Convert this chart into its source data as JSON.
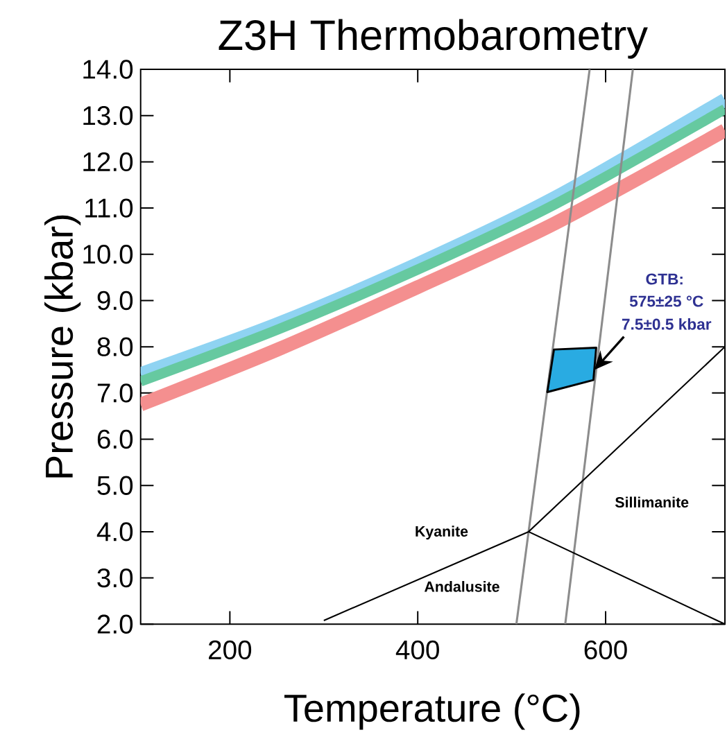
{
  "chart_data": {
    "type": "line",
    "title": "Z3H Thermobarometry",
    "xlabel": "Temperature (°C)",
    "ylabel": "Pressure (kbar)",
    "xlim": [
      105,
      727
    ],
    "ylim": [
      2,
      14
    ],
    "xticks": [
      200,
      400,
      600
    ],
    "yticks": [
      {
        "value": 2,
        "label": "2.0"
      },
      {
        "value": 3,
        "label": "3.0"
      },
      {
        "value": 4,
        "label": "4.0"
      },
      {
        "value": 5,
        "label": "5.0"
      },
      {
        "value": 6,
        "label": "6.0"
      },
      {
        "value": 7,
        "label": "7.0"
      },
      {
        "value": 8,
        "label": "8.0"
      },
      {
        "value": 9,
        "label": "9.0"
      },
      {
        "value": 10,
        "label": "10.0"
      },
      {
        "value": 11,
        "label": "11.0"
      },
      {
        "value": 12,
        "label": "12.0"
      },
      {
        "value": 13,
        "label": "13.0"
      },
      {
        "value": 14,
        "label": "14.0"
      }
    ],
    "series": [
      {
        "color": "#8fd3f2",
        "x": [
          105,
          252,
          400,
          546,
          727
        ],
        "values": [
          7.41,
          8.5,
          9.79,
          11.22,
          13.34
        ]
      },
      {
        "color": "#66c9a0",
        "x": [
          105,
          252,
          400,
          546,
          727
        ],
        "values": [
          7.25,
          8.38,
          9.67,
          11.08,
          13.14
        ]
      },
      {
        "color": "#f48f8f",
        "x": [
          105,
          252,
          400,
          546,
          727
        ],
        "values": [
          6.75,
          7.95,
          9.29,
          10.67,
          12.68
        ]
      },
      {
        "color": "#8c8c8c",
        "x": [
          505,
          583
        ],
        "values": [
          2,
          14
        ]
      },
      {
        "color": "#8c8c8c",
        "x": [
          557,
          629
        ],
        "values": [
          2,
          14
        ]
      },
      {
        "color": "#000000",
        "x": [
          300,
          518,
          727,
          518,
          727
        ],
        "values": [
          2.08,
          4.0,
          8.0,
          4.0,
          2.0
        ]
      },
      {
        "type": "area",
        "color": "#29abe2",
        "x": [
          545,
          590,
          587,
          538
        ],
        "values": [
          7.94,
          7.98,
          7.28,
          7.02
        ]
      }
    ],
    "annotations": [
      "Kyanite",
      "Andalusite",
      "Sillimanite",
      "GTB:",
      "575±25 °C",
      "7.5±0.5 kbar"
    ]
  }
}
